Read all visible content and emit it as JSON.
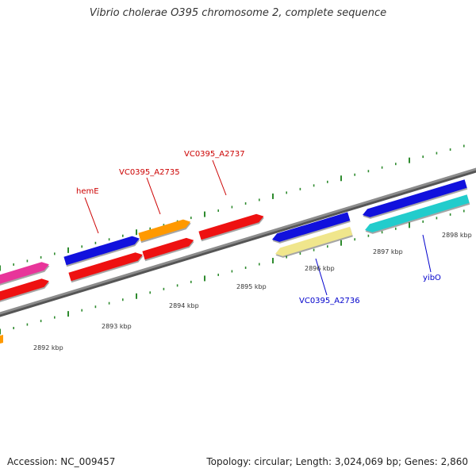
{
  "title": "Vibrio cholerae O395 chromosome 2, complete sequence",
  "footer": {
    "accession": "Accession: NC_009457",
    "topology": "Topology: circular; Length: 3,024,069 bp; Genes: 2,860"
  },
  "colors": {
    "backbone": "#8c8c8c",
    "tick": "#2e8b2e",
    "forward_label": "#cc0000",
    "reverse_label": "#0000cc"
  },
  "tick_labels": [
    "2892 kbp",
    "2893 kbp",
    "2894 kbp",
    "2895 kbp",
    "2896 kbp",
    "2897 kbp",
    "2898 kbp"
  ],
  "gene_labels": [
    {
      "text": "hemE",
      "strand": "forward"
    },
    {
      "text": "VC0395_A2735",
      "strand": "forward"
    },
    {
      "text": "VC0395_A2737",
      "strand": "forward"
    },
    {
      "text": "VC0395_A2736",
      "strand": "reverse"
    },
    {
      "text": "yibO",
      "strand": "reverse"
    }
  ],
  "features": [
    {
      "name": "pink-gene",
      "color": "#e8359a",
      "track": "outer-forward"
    },
    {
      "name": "red-gene-1",
      "color": "#ee1111",
      "track": "inner-forward"
    },
    {
      "name": "hemE",
      "color": "#1111dd",
      "track": "outer-forward"
    },
    {
      "name": "red-gene-2",
      "color": "#ee1111",
      "track": "inner-forward"
    },
    {
      "name": "orange-gene",
      "color": "#ff9900",
      "track": "outer-forward"
    },
    {
      "name": "VC0395_A2735",
      "color": "#ee1111",
      "track": "inner-forward"
    },
    {
      "name": "VC0395_A2737",
      "color": "#ee1111",
      "track": "inner-forward"
    },
    {
      "name": "blue-gene",
      "color": "#1111dd",
      "track": "outer-reverse"
    },
    {
      "name": "VC0395_A2736",
      "color": "#f0e68c",
      "track": "inner-reverse"
    },
    {
      "name": "big-blue-gene",
      "color": "#1111dd",
      "track": "outer-reverse"
    },
    {
      "name": "yibO",
      "color": "#22cccc",
      "track": "inner-reverse"
    }
  ]
}
